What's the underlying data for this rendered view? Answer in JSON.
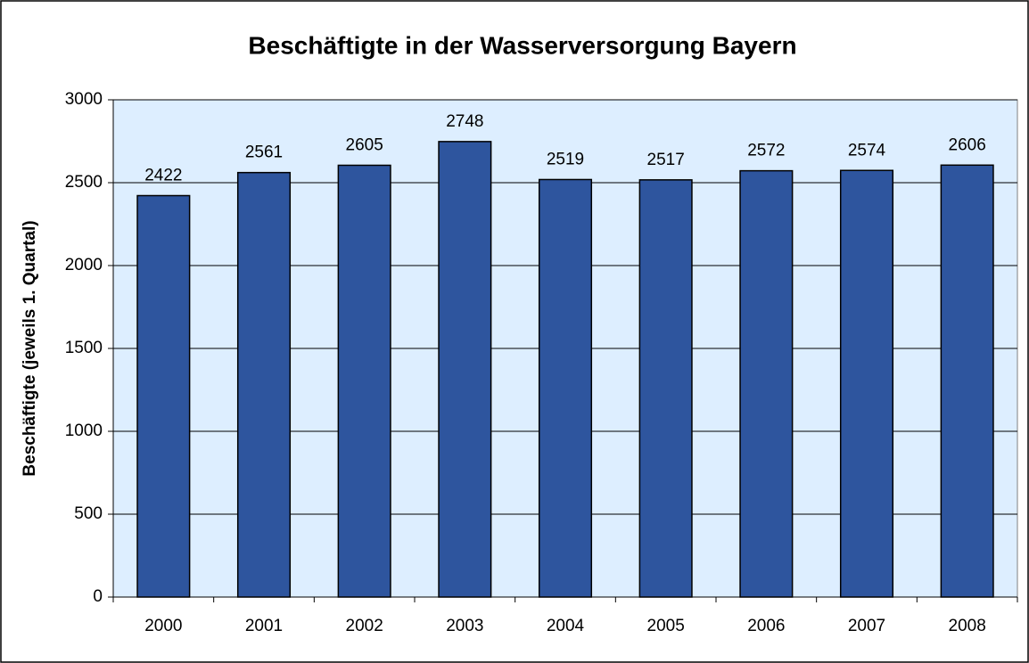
{
  "chart_data": {
    "type": "bar",
    "title": "Beschäftigte in der Wasserversorgung Bayern",
    "y_label": "Beschäftigte (jeweils 1. Quartal)",
    "categories": [
      "2000",
      "2001",
      "2002",
      "2003",
      "2004",
      "2005",
      "2006",
      "2007",
      "2008"
    ],
    "values": [
      2422,
      2561,
      2605,
      2748,
      2519,
      2517,
      2572,
      2574,
      2606
    ],
    "color": "#2e559e",
    "ylim": [
      0,
      3000
    ],
    "yticks": [
      0,
      500,
      1000,
      1500,
      2000,
      2500,
      3000
    ],
    "grid": true
  }
}
